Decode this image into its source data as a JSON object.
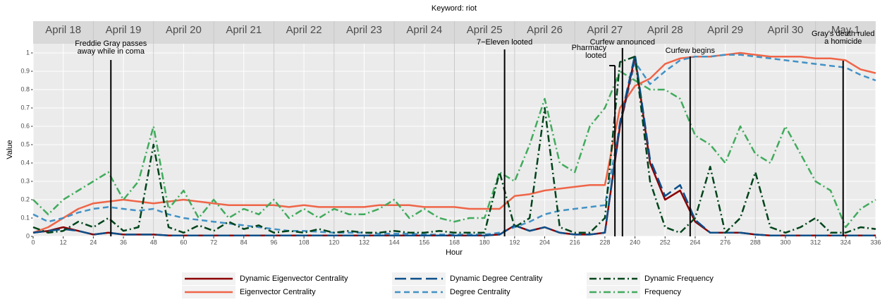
{
  "chart_data": {
    "type": "line",
    "title": "Keyword: riot",
    "xlabel": "Hour",
    "ylabel": "Value",
    "xlim": [
      0,
      336
    ],
    "ylim": [
      0,
      1.05
    ],
    "xticks": [
      0,
      12,
      24,
      36,
      48,
      60,
      72,
      84,
      96,
      108,
      120,
      132,
      144,
      156,
      168,
      180,
      192,
      204,
      216,
      228,
      240,
      252,
      264,
      276,
      288,
      300,
      312,
      324,
      336
    ],
    "yticks": [
      0,
      0.1,
      0.2,
      0.3,
      0.4,
      0.5,
      0.6,
      0.7,
      0.8,
      0.9,
      1
    ],
    "grid": true,
    "legend": "bottom",
    "days": [
      "April 18",
      "April 19",
      "April 20",
      "April 21",
      "April 22",
      "April 23",
      "April 24",
      "April 25",
      "April 26",
      "April 27",
      "April 28",
      "April 29",
      "April 30",
      "May 1"
    ],
    "annotations": [
      {
        "x": 31,
        "label": [
          "Freddie Gray passes",
          "away while in coma"
        ]
      },
      {
        "x": 188,
        "label": [
          "7−Eleven looted"
        ]
      },
      {
        "x": 232,
        "label": [
          "Pharmacy",
          "looted"
        ]
      },
      {
        "x": 235,
        "label": [
          "Curfew announced"
        ]
      },
      {
        "x": 262,
        "label": [
          "Curfew begins"
        ]
      },
      {
        "x": 323,
        "label": [
          "Gray's death ruled",
          "a homicide"
        ]
      }
    ],
    "x": [
      0,
      6,
      12,
      18,
      24,
      30,
      36,
      42,
      48,
      54,
      60,
      66,
      72,
      78,
      84,
      90,
      96,
      102,
      108,
      114,
      120,
      126,
      132,
      138,
      144,
      150,
      156,
      162,
      168,
      174,
      180,
      186,
      192,
      198,
      204,
      210,
      216,
      222,
      228,
      234,
      240,
      246,
      252,
      258,
      264,
      270,
      276,
      282,
      288,
      294,
      300,
      306,
      312,
      318,
      324,
      330,
      336
    ],
    "series": [
      {
        "name": "Dynamic Eigenvector Centrality",
        "color": "#8b0000",
        "dash": "solid",
        "values": [
          0.02,
          0.03,
          0.05,
          0.03,
          0.01,
          0.02,
          0.01,
          0.01,
          0.01,
          0.005,
          0.005,
          0.005,
          0.005,
          0.005,
          0.005,
          0.005,
          0.005,
          0.005,
          0.005,
          0.005,
          0.005,
          0.005,
          0.005,
          0.005,
          0.005,
          0.005,
          0.005,
          0.005,
          0.005,
          0.005,
          0.005,
          0.01,
          0.06,
          0.03,
          0.05,
          0.02,
          0.01,
          0.01,
          0.02,
          0.6,
          0.98,
          0.4,
          0.2,
          0.25,
          0.08,
          0.02,
          0.02,
          0.02,
          0.01,
          0.005,
          0.005,
          0.005,
          0.005,
          0.005,
          0.005,
          0.005,
          0.005
        ]
      },
      {
        "name": "Eigenvector Centrality",
        "color": "#ef6548",
        "dash": "solid",
        "values": [
          0.02,
          0.05,
          0.1,
          0.15,
          0.18,
          0.19,
          0.2,
          0.19,
          0.18,
          0.19,
          0.2,
          0.19,
          0.18,
          0.17,
          0.17,
          0.17,
          0.17,
          0.16,
          0.17,
          0.16,
          0.16,
          0.16,
          0.16,
          0.17,
          0.17,
          0.17,
          0.16,
          0.16,
          0.16,
          0.15,
          0.15,
          0.15,
          0.22,
          0.23,
          0.25,
          0.26,
          0.27,
          0.28,
          0.28,
          0.7,
          0.82,
          0.86,
          0.94,
          0.97,
          0.98,
          0.98,
          0.99,
          1.0,
          0.99,
          0.98,
          0.98,
          0.98,
          0.97,
          0.97,
          0.96,
          0.91,
          0.89
        ]
      },
      {
        "name": "Dynamic Degree Centrality",
        "color": "#0b4f8a",
        "dash": "longdash",
        "values": [
          0.02,
          0.03,
          0.04,
          0.03,
          0.01,
          0.02,
          0.01,
          0.01,
          0.01,
          0.005,
          0.005,
          0.005,
          0.005,
          0.005,
          0.005,
          0.005,
          0.005,
          0.005,
          0.005,
          0.005,
          0.005,
          0.005,
          0.005,
          0.005,
          0.005,
          0.005,
          0.005,
          0.005,
          0.005,
          0.005,
          0.005,
          0.01,
          0.06,
          0.03,
          0.05,
          0.02,
          0.01,
          0.01,
          0.02,
          0.62,
          0.99,
          0.42,
          0.22,
          0.28,
          0.09,
          0.02,
          0.02,
          0.02,
          0.01,
          0.005,
          0.005,
          0.005,
          0.005,
          0.005,
          0.005,
          0.005,
          0.005
        ]
      },
      {
        "name": "Degree Centrality",
        "color": "#4292c6",
        "dash": "dash",
        "values": [
          0.12,
          0.08,
          0.1,
          0.13,
          0.15,
          0.16,
          0.15,
          0.14,
          0.15,
          0.12,
          0.1,
          0.09,
          0.08,
          0.07,
          0.06,
          0.05,
          0.04,
          0.03,
          0.03,
          0.025,
          0.02,
          0.02,
          0.02,
          0.015,
          0.015,
          0.015,
          0.01,
          0.01,
          0.01,
          0.01,
          0.01,
          0.02,
          0.05,
          0.08,
          0.12,
          0.14,
          0.15,
          0.16,
          0.17,
          0.6,
          0.95,
          0.83,
          0.9,
          0.96,
          0.98,
          0.98,
          0.99,
          0.99,
          0.98,
          0.97,
          0.96,
          0.95,
          0.94,
          0.93,
          0.92,
          0.88,
          0.85
        ]
      },
      {
        "name": "Dynamic Frequency",
        "color": "#00441b",
        "dash": "dotdash",
        "values": [
          0.05,
          0.02,
          0.03,
          0.08,
          0.05,
          0.1,
          0.03,
          0.05,
          0.5,
          0.05,
          0.02,
          0.06,
          0.03,
          0.08,
          0.04,
          0.06,
          0.02,
          0.03,
          0.02,
          0.04,
          0.02,
          0.03,
          0.02,
          0.02,
          0.03,
          0.02,
          0.02,
          0.03,
          0.02,
          0.02,
          0.02,
          0.35,
          0.05,
          0.1,
          0.7,
          0.05,
          0.02,
          0.02,
          0.1,
          0.95,
          0.98,
          0.3,
          0.05,
          0.02,
          0.1,
          0.38,
          0.02,
          0.1,
          0.35,
          0.05,
          0.02,
          0.05,
          0.1,
          0.02,
          0.02,
          0.05,
          0.04
        ]
      },
      {
        "name": "Frequency",
        "color": "#41ab5d",
        "dash": "dotdash",
        "values": [
          0.2,
          0.12,
          0.2,
          0.25,
          0.3,
          0.35,
          0.2,
          0.3,
          0.6,
          0.15,
          0.25,
          0.1,
          0.2,
          0.1,
          0.15,
          0.12,
          0.2,
          0.1,
          0.15,
          0.1,
          0.15,
          0.12,
          0.12,
          0.15,
          0.2,
          0.1,
          0.15,
          0.1,
          0.08,
          0.1,
          0.1,
          0.35,
          0.3,
          0.5,
          0.75,
          0.4,
          0.35,
          0.6,
          0.7,
          0.9,
          0.85,
          0.8,
          0.8,
          0.75,
          0.55,
          0.5,
          0.4,
          0.6,
          0.45,
          0.4,
          0.6,
          0.45,
          0.3,
          0.25,
          0.05,
          0.15,
          0.2
        ]
      }
    ]
  }
}
